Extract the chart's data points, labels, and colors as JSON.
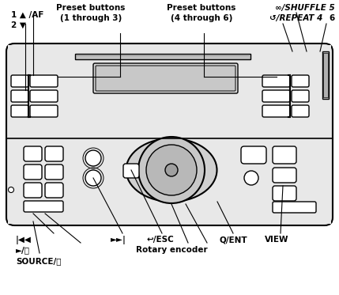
{
  "fig_width": 4.29,
  "fig_height": 3.73,
  "dpi": 100,
  "bg_color": "#ffffff",
  "line_color": "#000000",
  "gray_fill": "#e0e0e0",
  "white_fill": "#ffffff",
  "light_gray": "#cccccc",
  "labels": {
    "num1": "1 ▲ /AF",
    "num2": "2 ▼",
    "preset13": "Preset buttons\n(1 through 3)",
    "preset46": "Preset buttons\n(4 through 6)",
    "shuffle": "∞/SHUFFLE 5",
    "repeat": "↺/REPEAT 4",
    "num6": "6",
    "prev": "|◀◀",
    "next": "►►|",
    "play": "►/⏸",
    "esc": "↩/ESC",
    "ent": "Q/ENT",
    "view": "VIEW",
    "rotary": "Rotary encoder",
    "source": "SOURCE/⏻"
  }
}
